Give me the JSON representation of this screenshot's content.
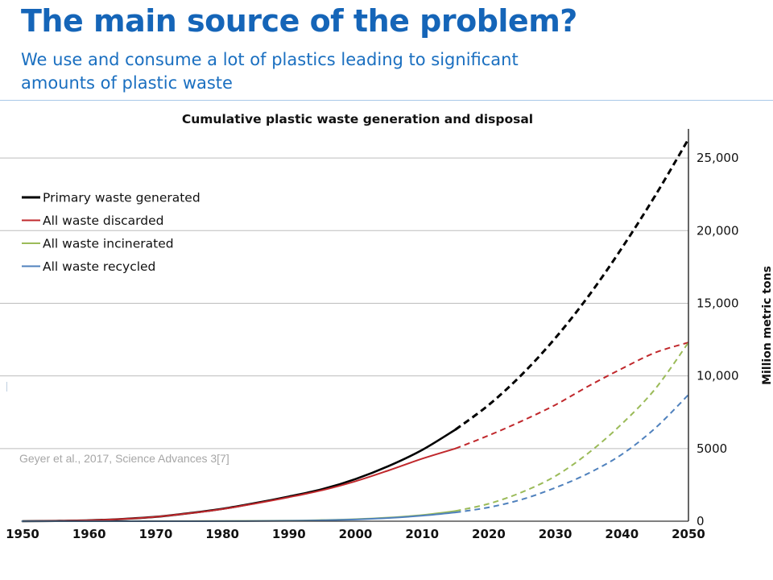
{
  "slide": {
    "title": "The main source of the problem?",
    "subtitle": "We use and consume a lot of plastics leading to significant amounts of plastic waste",
    "title_color": "#1565b8",
    "accent_rule_color": "#a9c8e8"
  },
  "chart_data": {
    "type": "line",
    "title": "Cumulative plastic waste generation and disposal",
    "xlabel": "",
    "ylabel": "Million metric tons",
    "xlim": [
      1950,
      2050
    ],
    "ylim": [
      0,
      27000
    ],
    "x_ticks": [
      1950,
      1960,
      1970,
      1980,
      1990,
      2000,
      2010,
      2020,
      2030,
      2040,
      2050
    ],
    "x_tick_labels": [
      "1950",
      "1960",
      "1970",
      "1980",
      "1990",
      "2000",
      "2010",
      "2020",
      "2030",
      "2040",
      "2050"
    ],
    "y_ticks": [
      0,
      5000,
      10000,
      15000,
      20000,
      25000
    ],
    "y_tick_labels": [
      "0",
      "5000",
      "10,000",
      "15,000",
      "20,000",
      "25,000"
    ],
    "y_axis_position": "right",
    "grid": "horizontal",
    "legend_position": "top-left",
    "projection_start": 2015,
    "projection_style": "dashed after 2015",
    "series": [
      {
        "name": "Primary waste generated",
        "color": "#000000",
        "x": [
          1950,
          1955,
          1960,
          1965,
          1970,
          1975,
          1980,
          1985,
          1990,
          1995,
          2000,
          2005,
          2010,
          2015,
          2020,
          2025,
          2030,
          2035,
          2040,
          2045,
          2050
        ],
        "y": [
          0,
          20,
          60,
          150,
          300,
          550,
          850,
          1250,
          1700,
          2200,
          2900,
          3800,
          4900,
          6300,
          8000,
          10100,
          12600,
          15500,
          18800,
          22400,
          26300
        ]
      },
      {
        "name": "All waste discarded",
        "color": "#c0282c",
        "x": [
          1950,
          1955,
          1960,
          1965,
          1970,
          1975,
          1980,
          1985,
          1990,
          1995,
          2000,
          2005,
          2010,
          2015,
          2020,
          2025,
          2030,
          2035,
          2040,
          2045,
          2050
        ],
        "y": [
          0,
          20,
          60,
          150,
          300,
          540,
          830,
          1220,
          1650,
          2130,
          2750,
          3500,
          4300,
          5000,
          5900,
          6900,
          8000,
          9300,
          10500,
          11600,
          12300
        ]
      },
      {
        "name": "All waste incinerated",
        "color": "#9bbb59",
        "x": [
          1950,
          1960,
          1970,
          1980,
          1990,
          1995,
          2000,
          2005,
          2010,
          2015,
          2020,
          2025,
          2030,
          2035,
          2040,
          2045,
          2050
        ],
        "y": [
          0,
          0,
          5,
          15,
          40,
          80,
          140,
          250,
          420,
          700,
          1200,
          2000,
          3100,
          4700,
          6700,
          9100,
          12300
        ]
      },
      {
        "name": "All waste recycled",
        "color": "#4f81bd",
        "x": [
          1950,
          1960,
          1970,
          1980,
          1990,
          1995,
          2000,
          2005,
          2010,
          2015,
          2020,
          2025,
          2030,
          2035,
          2040,
          2045,
          2050
        ],
        "y": [
          0,
          0,
          0,
          5,
          25,
          60,
          120,
          220,
          380,
          600,
          950,
          1500,
          2300,
          3300,
          4600,
          6400,
          8700
        ]
      }
    ],
    "annotations": [
      "Geyer et al., 2017, Science Advances 3[7]"
    ]
  }
}
